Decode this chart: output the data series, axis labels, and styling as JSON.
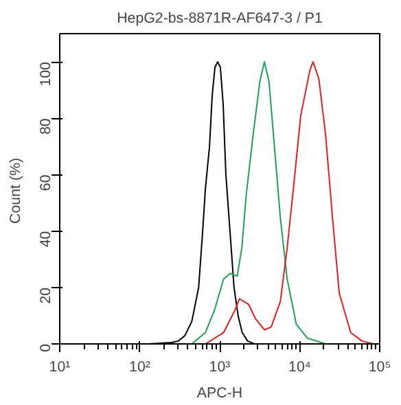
{
  "chart_data": {
    "type": "line",
    "title": "HepG2-bs-8871R-AF647-3 / P1",
    "xlabel": "APC-H",
    "ylabel": "Count  (%)",
    "log": "x",
    "grid": false,
    "marker": "none",
    "line_style": "solid",
    "xlim": [
      10,
      100000
    ],
    "xticks": [
      {
        "value": 10,
        "label": "10¹"
      },
      {
        "value": 100,
        "label": "10²"
      },
      {
        "value": 1000,
        "label": "10³"
      },
      {
        "value": 10000,
        "label": "10⁴"
      },
      {
        "value": 100000,
        "label": "10⁵"
      }
    ],
    "ylim": [
      0,
      110
    ],
    "yticks": [
      0,
      20,
      40,
      60,
      80,
      100
    ],
    "series": [
      {
        "color": "#000000",
        "x": [
          128,
          249,
          303,
          368,
          448,
          545,
          612,
          662,
          745,
          805,
          871,
          942,
          1019,
          1104,
          1194,
          1343,
          1510,
          1698,
          1910,
          2234,
          2716
        ],
        "values": [
          0,
          0.5,
          1,
          3,
          8,
          20,
          40,
          55,
          70,
          88,
          98,
          100,
          98,
          85,
          60,
          40,
          20,
          10,
          4,
          1,
          0
        ]
      },
      {
        "color": "#1fa055",
        "x": [
          448,
          662,
          861,
          1117,
          1359,
          1652,
          1888,
          2148,
          2612,
          3177,
          3614,
          4130,
          4699,
          5715,
          6966,
          9057,
          12530,
          21090
        ],
        "values": [
          0,
          4,
          12,
          23,
          25,
          24,
          34,
          53,
          74,
          93,
          100,
          93,
          74,
          45,
          23,
          7,
          2,
          0
        ]
      },
      {
        "color": "#e02020",
        "x": [
          662,
          1117,
          1552,
          1766,
          2010,
          2296,
          2792,
          3614,
          4395,
          5715,
          6966,
          8472,
          10300,
          13400,
          14660,
          17340,
          21090,
          25650,
          31190,
          43350,
          60120,
          83180
        ],
        "values": [
          0,
          4,
          12,
          16,
          15,
          14,
          9,
          5,
          6,
          15,
          34,
          57,
          81,
          97,
          100,
          94,
          74,
          45,
          18,
          4,
          1,
          0
        ]
      }
    ]
  }
}
